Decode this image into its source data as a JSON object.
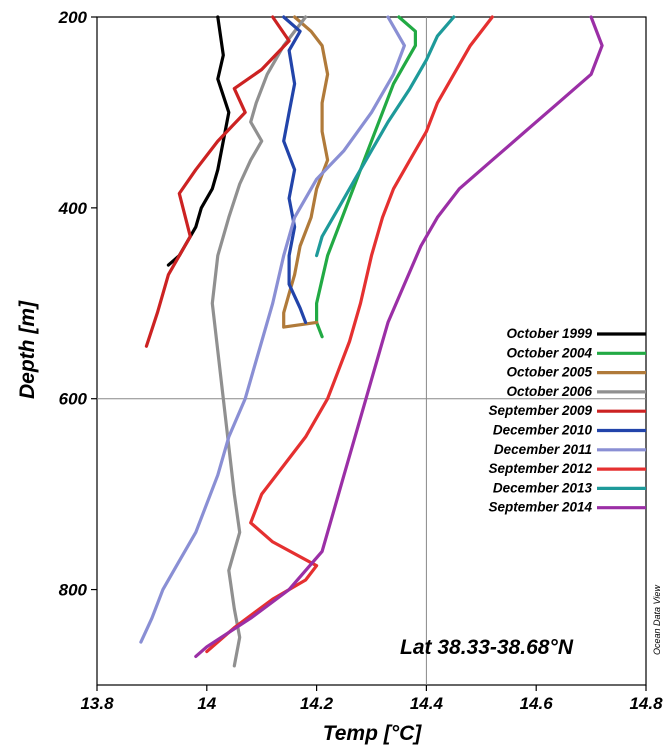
{
  "chart_data": {
    "type": "line",
    "title": "",
    "xlabel": "Temp [°C]",
    "ylabel": "Depth [m]",
    "xlim": [
      13.8,
      14.8
    ],
    "ylim": [
      900,
      200
    ],
    "y_inverted": true,
    "x_ticks": [
      13.8,
      14,
      14.2,
      14.4,
      14.6,
      14.8
    ],
    "x_tick_labels": [
      "13.8",
      "14",
      "14.2",
      "14.4",
      "14.6",
      "14.8"
    ],
    "y_ticks": [
      200,
      400,
      600,
      800
    ],
    "y_tick_labels": [
      "200",
      "400",
      "600",
      "800"
    ],
    "grid": "single crosshair line at 14.4 °C and 600 m",
    "legend_position": "right, middle",
    "annotation": "Lat 38.33-38.68°N",
    "credit": "Ocean Data View",
    "series": [
      {
        "name": "October 1999",
        "color": "#000000",
        "x": [
          14.02,
          14.03,
          14.02,
          14.04,
          14.03,
          14.02,
          14.01,
          13.99,
          13.98,
          13.96,
          13.95,
          13.94,
          13.93
        ],
        "y": [
          200,
          240,
          265,
          300,
          330,
          360,
          380,
          400,
          420,
          440,
          450,
          455,
          460
        ]
      },
      {
        "name": "October 2004",
        "color": "#22aa44",
        "x": [
          14.35,
          14.38,
          14.38,
          14.36,
          14.34,
          14.32,
          14.3,
          14.28,
          14.26,
          14.24,
          14.22,
          14.21,
          14.2,
          14.2,
          14.21
        ],
        "y": [
          200,
          215,
          230,
          250,
          270,
          300,
          330,
          360,
          390,
          420,
          450,
          475,
          500,
          520,
          535
        ]
      },
      {
        "name": "October 2005",
        "color": "#b07a3a",
        "x": [
          14.16,
          14.19,
          14.21,
          14.22,
          14.21,
          14.21,
          14.22,
          14.2,
          14.19,
          14.17,
          14.16,
          14.15,
          14.14,
          14.14,
          14.2
        ],
        "y": [
          200,
          215,
          230,
          260,
          290,
          320,
          350,
          380,
          410,
          440,
          470,
          490,
          510,
          525,
          520
        ]
      },
      {
        "name": "October 2006",
        "color": "#909090",
        "x": [
          14.18,
          14.14,
          14.11,
          14.09,
          14.08,
          14.1,
          14.08,
          14.06,
          14.04,
          14.02,
          14.01,
          14.02,
          14.03,
          14.04,
          14.05,
          14.06,
          14.04,
          14.05,
          14.06,
          14.05
        ],
        "y": [
          200,
          230,
          260,
          290,
          310,
          330,
          350,
          375,
          410,
          450,
          500,
          550,
          600,
          650,
          700,
          740,
          780,
          820,
          850,
          880
        ]
      },
      {
        "name": "September 2009",
        "color": "#cc2222",
        "x": [
          14.12,
          14.15,
          14.1,
          14.05,
          14.07,
          14.02,
          13.98,
          13.95,
          13.97,
          13.93,
          13.91,
          13.89
        ],
        "y": [
          200,
          225,
          255,
          275,
          300,
          330,
          360,
          385,
          430,
          470,
          510,
          545
        ]
      },
      {
        "name": "December 2010",
        "color": "#2244aa",
        "x": [
          14.14,
          14.17,
          14.15,
          14.16,
          14.15,
          14.14,
          14.16,
          14.15,
          14.16,
          14.15,
          14.15,
          14.17,
          14.18
        ],
        "y": [
          200,
          215,
          235,
          270,
          300,
          330,
          360,
          390,
          420,
          450,
          480,
          505,
          520
        ]
      },
      {
        "name": "December 2011",
        "color": "#8a8fd4",
        "x": [
          14.33,
          14.36,
          14.34,
          14.3,
          14.25,
          14.2,
          14.16,
          14.14,
          14.12,
          14.09,
          14.07,
          14.04,
          14.02,
          14.0,
          13.98,
          13.95,
          13.92,
          13.9,
          13.88
        ],
        "y": [
          200,
          230,
          260,
          300,
          340,
          370,
          410,
          450,
          500,
          560,
          600,
          640,
          680,
          710,
          740,
          770,
          800,
          830,
          855
        ]
      },
      {
        "name": "September 2012",
        "color": "#e53030",
        "x": [
          14.52,
          14.48,
          14.45,
          14.42,
          14.4,
          14.37,
          14.34,
          14.32,
          14.3,
          14.28,
          14.26,
          14.24,
          14.22,
          14.18,
          14.14,
          14.1,
          14.08,
          14.12,
          14.2,
          14.18,
          14.12,
          14.05,
          14.0
        ],
        "y": [
          200,
          230,
          260,
          290,
          320,
          350,
          380,
          410,
          450,
          500,
          540,
          570,
          600,
          640,
          670,
          700,
          730,
          750,
          775,
          790,
          810,
          840,
          865
        ]
      },
      {
        "name": "December 2013",
        "color": "#1e9a9a",
        "x": [
          14.45,
          14.42,
          14.4,
          14.37,
          14.33,
          14.3,
          14.27,
          14.24,
          14.21,
          14.2
        ],
        "y": [
          200,
          220,
          245,
          275,
          310,
          340,
          370,
          400,
          430,
          450
        ]
      },
      {
        "name": "September 2014",
        "color": "#9b2fa6",
        "x": [
          14.7,
          14.72,
          14.7,
          14.64,
          14.58,
          14.52,
          14.46,
          14.42,
          14.39,
          14.36,
          14.33,
          14.31,
          14.29,
          14.27,
          14.25,
          14.23,
          14.21,
          14.15,
          14.08,
          14.0,
          13.98
        ],
        "y": [
          200,
          230,
          260,
          290,
          320,
          350,
          380,
          410,
          440,
          480,
          520,
          560,
          600,
          640,
          680,
          720,
          760,
          800,
          830,
          860,
          870
        ]
      }
    ]
  }
}
